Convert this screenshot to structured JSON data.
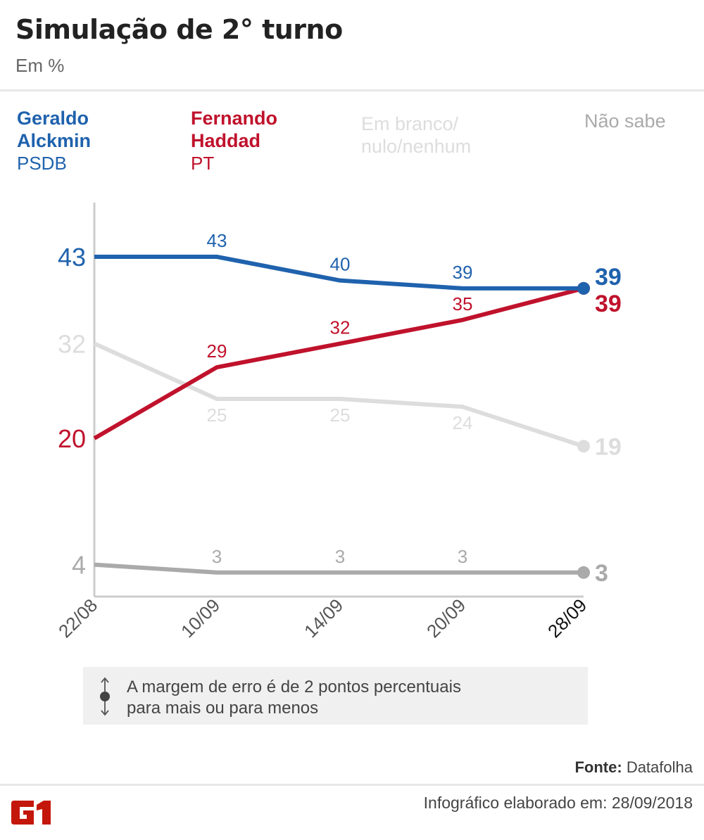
{
  "header": {
    "title": "Simulação de 2° turno",
    "subtitle": "Em %"
  },
  "legend": [
    {
      "name_line1": "Geraldo",
      "name_line2": "Alckmin",
      "party": "PSDB",
      "color": "#1f62ad"
    },
    {
      "name_line1": "Fernando",
      "name_line2": "Haddad",
      "party": "PT",
      "color": "#c0122c"
    },
    {
      "name_line1": "Em branco/",
      "name_line2": "nulo/nenhum",
      "party": "",
      "color": "#dddddd"
    },
    {
      "name_line1": "Não sabe",
      "name_line2": "",
      "party": "",
      "color": "#aaaaaa"
    }
  ],
  "chart_data": {
    "type": "line",
    "title": "Simulação de 2° turno",
    "subtitle": "Em %",
    "x": [
      "22/08",
      "10/09",
      "14/09",
      "20/09",
      "28/09"
    ],
    "xlabel": "",
    "ylabel": "%",
    "ylim": [
      3,
      43
    ],
    "grid": false,
    "legend_placement": "top",
    "series": [
      {
        "name": "Geraldo Alckmin (PSDB)",
        "color": "#1f62ad",
        "values": [
          43,
          43,
          40,
          39,
          39
        ]
      },
      {
        "name": "Fernando Haddad (PT)",
        "color": "#c0122c",
        "values": [
          20,
          29,
          32,
          35,
          39
        ]
      },
      {
        "name": "Em branco/nulo/nenhum",
        "color": "#dddddd",
        "values": [
          32,
          25,
          25,
          24,
          19
        ]
      },
      {
        "name": "Não sabe",
        "color": "#aaaaaa",
        "values": [
          4,
          3,
          3,
          3,
          3
        ]
      }
    ]
  },
  "note": {
    "line1": "A margem de erro é de 2 pontos percentuais",
    "line2": "para mais ou para menos"
  },
  "footer": {
    "source_label": "Fonte:",
    "source_value": "Datafolha",
    "credit": "Infográfico elaborado em: 28/09/2018",
    "logo_text": "G1",
    "logo_color": "#c4170c"
  }
}
